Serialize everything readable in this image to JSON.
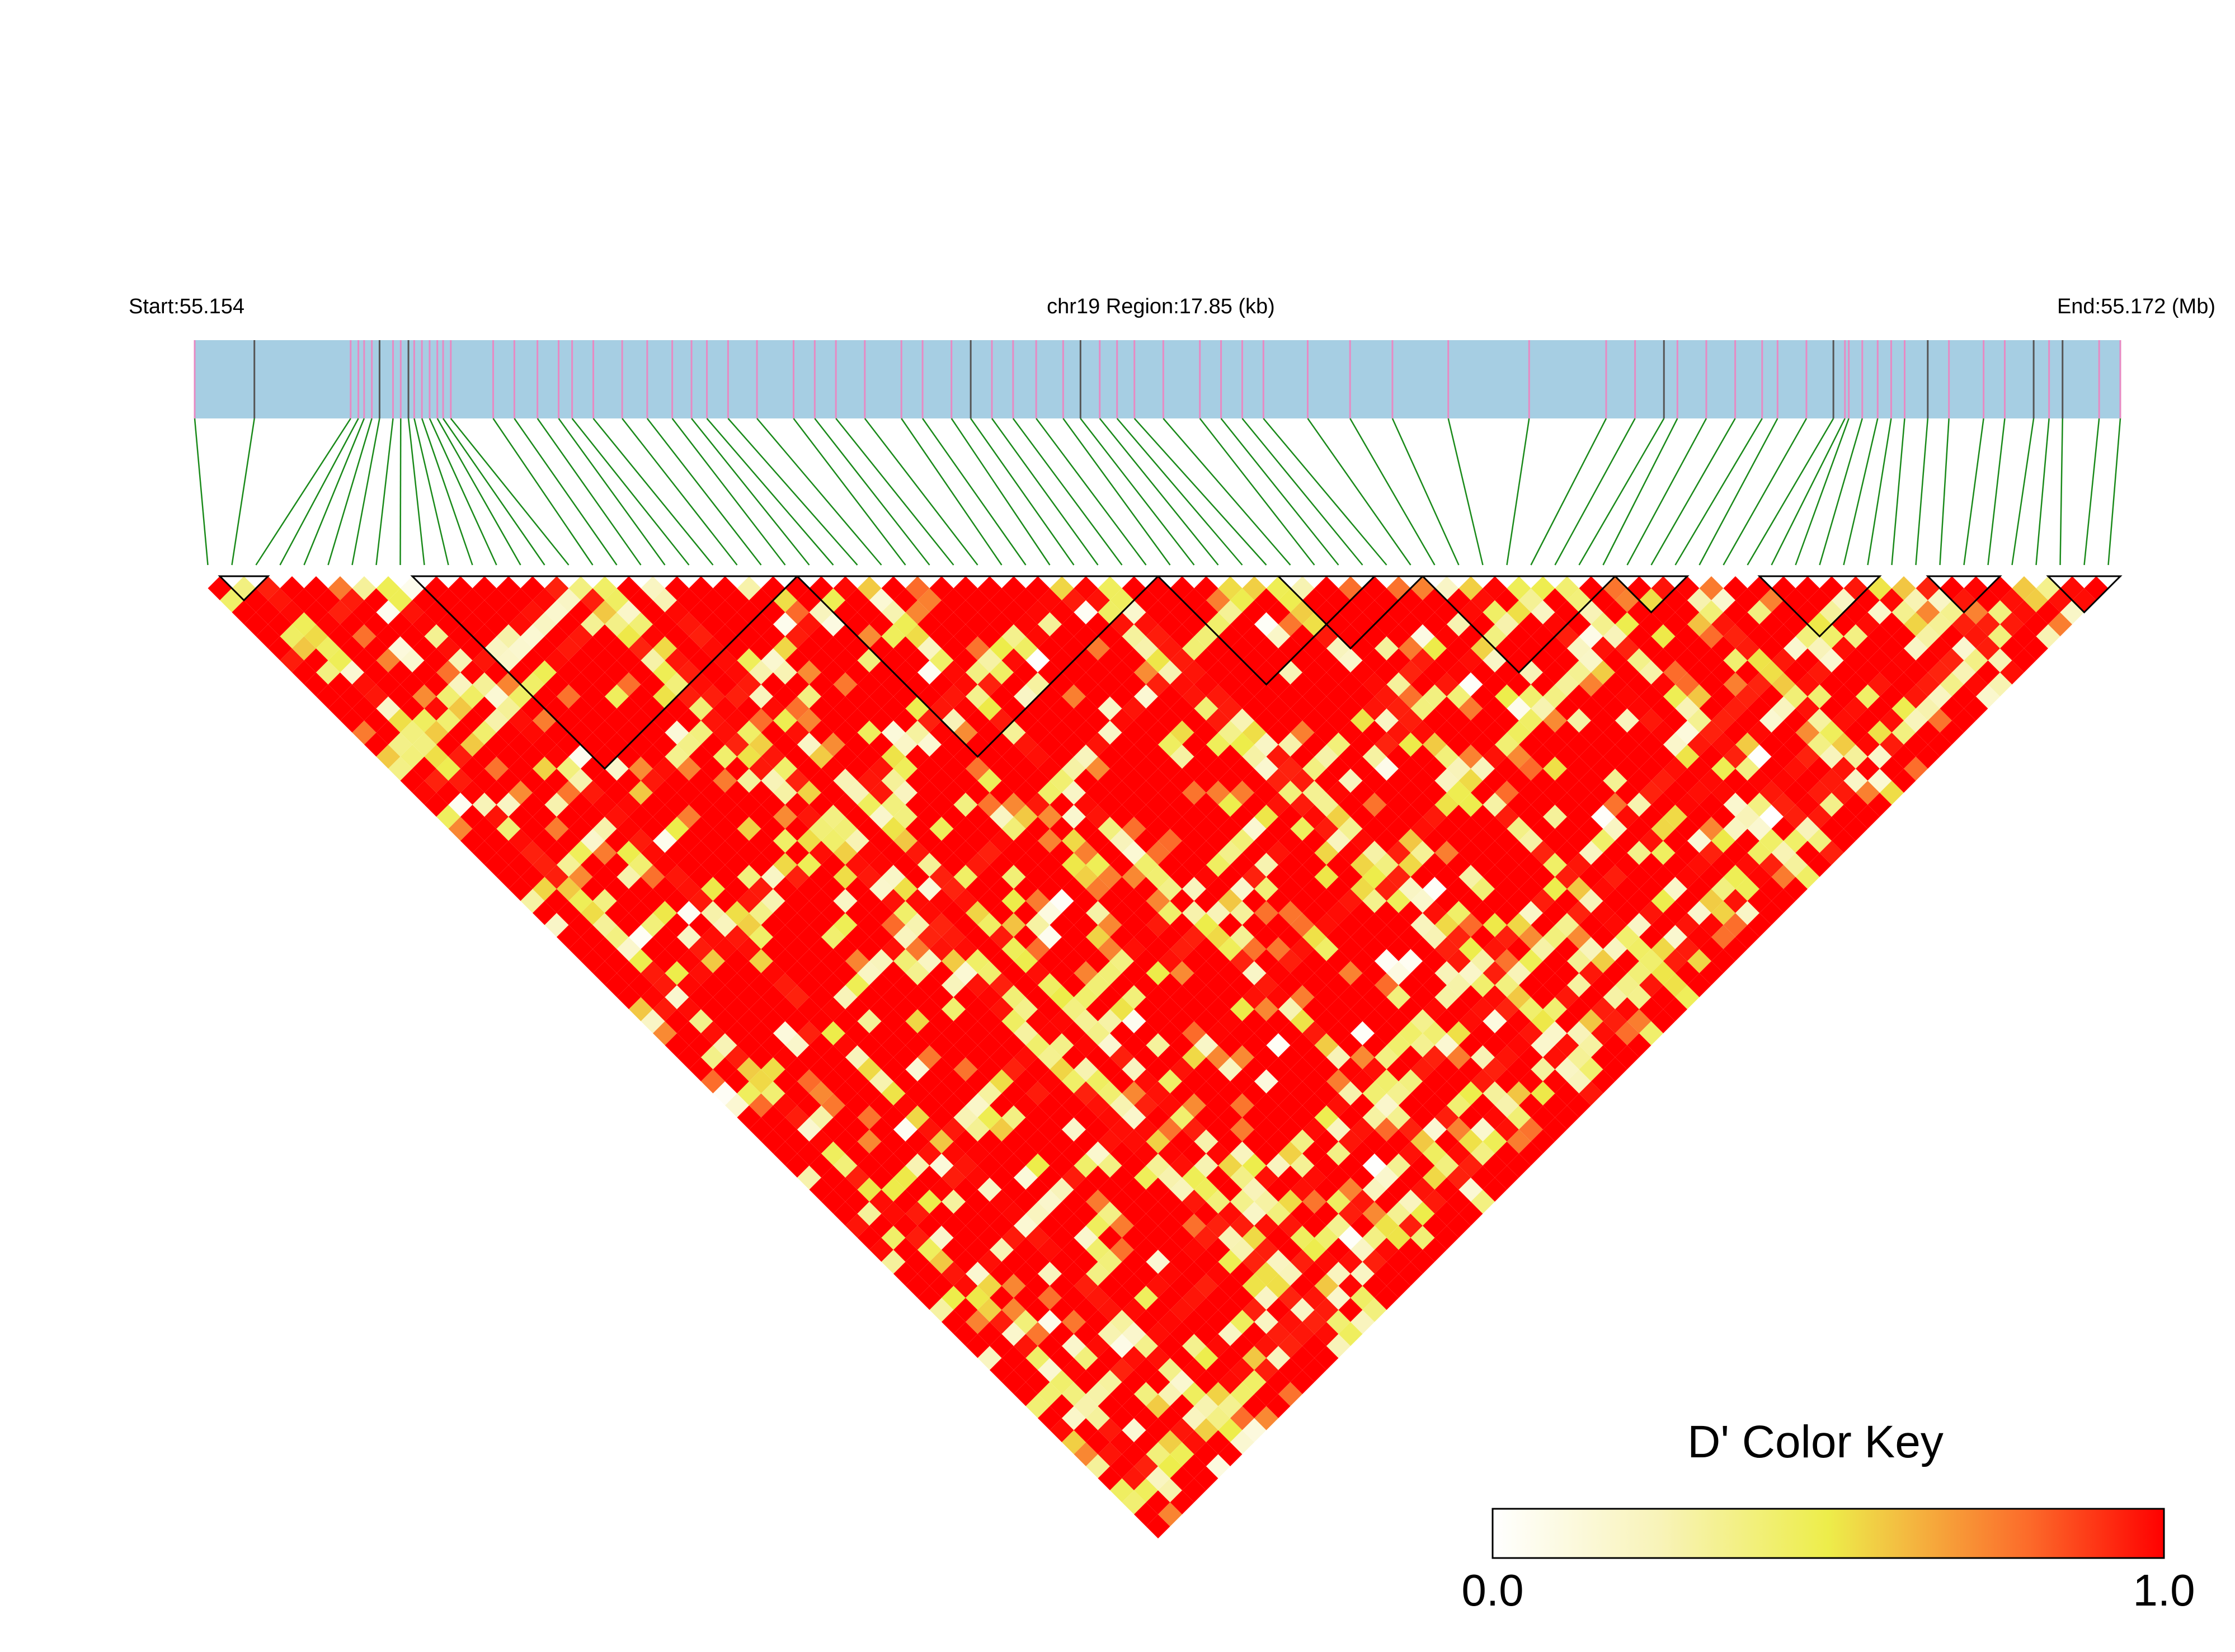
{
  "chart_data": {
    "type": "heatmap",
    "title": "",
    "header": {
      "start_label": "Start:55.154",
      "region_label": "chr19 Region:17.85 (kb)",
      "end_label": "End:55.172 (Mb)"
    },
    "chromosome": "chr19",
    "region_start_mb": 55.154,
    "region_end_mb": 55.172,
    "region_length_kb": 17.85,
    "snp_count": 80,
    "colors": {
      "track_fill": "#a6cee3",
      "snp_tick_pink": "#e78ac3",
      "snp_tick_dark": "#555555",
      "connector_green": "#1a8a1a",
      "ld_high": "#ff0000",
      "ld_mid": "#eded4a",
      "ld_low": "#ffffff",
      "block_outline": "#000000"
    },
    "snp_positions_frac": [
      0.0,
      0.031,
      0.081,
      0.085,
      0.088,
      0.092,
      0.096,
      0.103,
      0.107,
      0.111,
      0.114,
      0.118,
      0.122,
      0.126,
      0.129,
      0.133,
      0.155,
      0.166,
      0.178,
      0.189,
      0.196,
      0.207,
      0.222,
      0.235,
      0.248,
      0.258,
      0.266,
      0.277,
      0.292,
      0.311,
      0.322,
      0.333,
      0.348,
      0.367,
      0.378,
      0.393,
      0.403,
      0.414,
      0.425,
      0.437,
      0.451,
      0.46,
      0.47,
      0.479,
      0.488,
      0.503,
      0.522,
      0.533,
      0.544,
      0.555,
      0.578,
      0.6,
      0.622,
      0.651,
      0.693,
      0.733,
      0.748,
      0.763,
      0.77,
      0.785,
      0.8,
      0.814,
      0.822,
      0.837,
      0.851,
      0.857,
      0.859,
      0.866,
      0.874,
      0.881,
      0.888,
      0.9,
      0.911,
      0.929,
      0.94,
      0.955,
      0.963,
      0.97,
      0.989,
      1.0
    ],
    "snp_dark_ticks": [
      1,
      6,
      9,
      36,
      41,
      57,
      64,
      71,
      75,
      77
    ],
    "ld_blocks": [
      [
        1,
        3
      ],
      [
        9,
        25
      ],
      [
        25,
        40
      ],
      [
        40,
        49
      ],
      [
        45,
        51
      ],
      [
        51,
        59
      ],
      [
        59,
        62
      ],
      [
        65,
        70
      ],
      [
        72,
        75
      ],
      [
        77,
        80
      ]
    ],
    "ld_matrix_note": "D' values; high LD (red) dominates with scattered yellow/white low-LD diagonal streaks",
    "color_key": {
      "title": "D' Color Key",
      "min_label": "0.0",
      "max_label": "1.0",
      "range": [
        0,
        1
      ]
    }
  }
}
